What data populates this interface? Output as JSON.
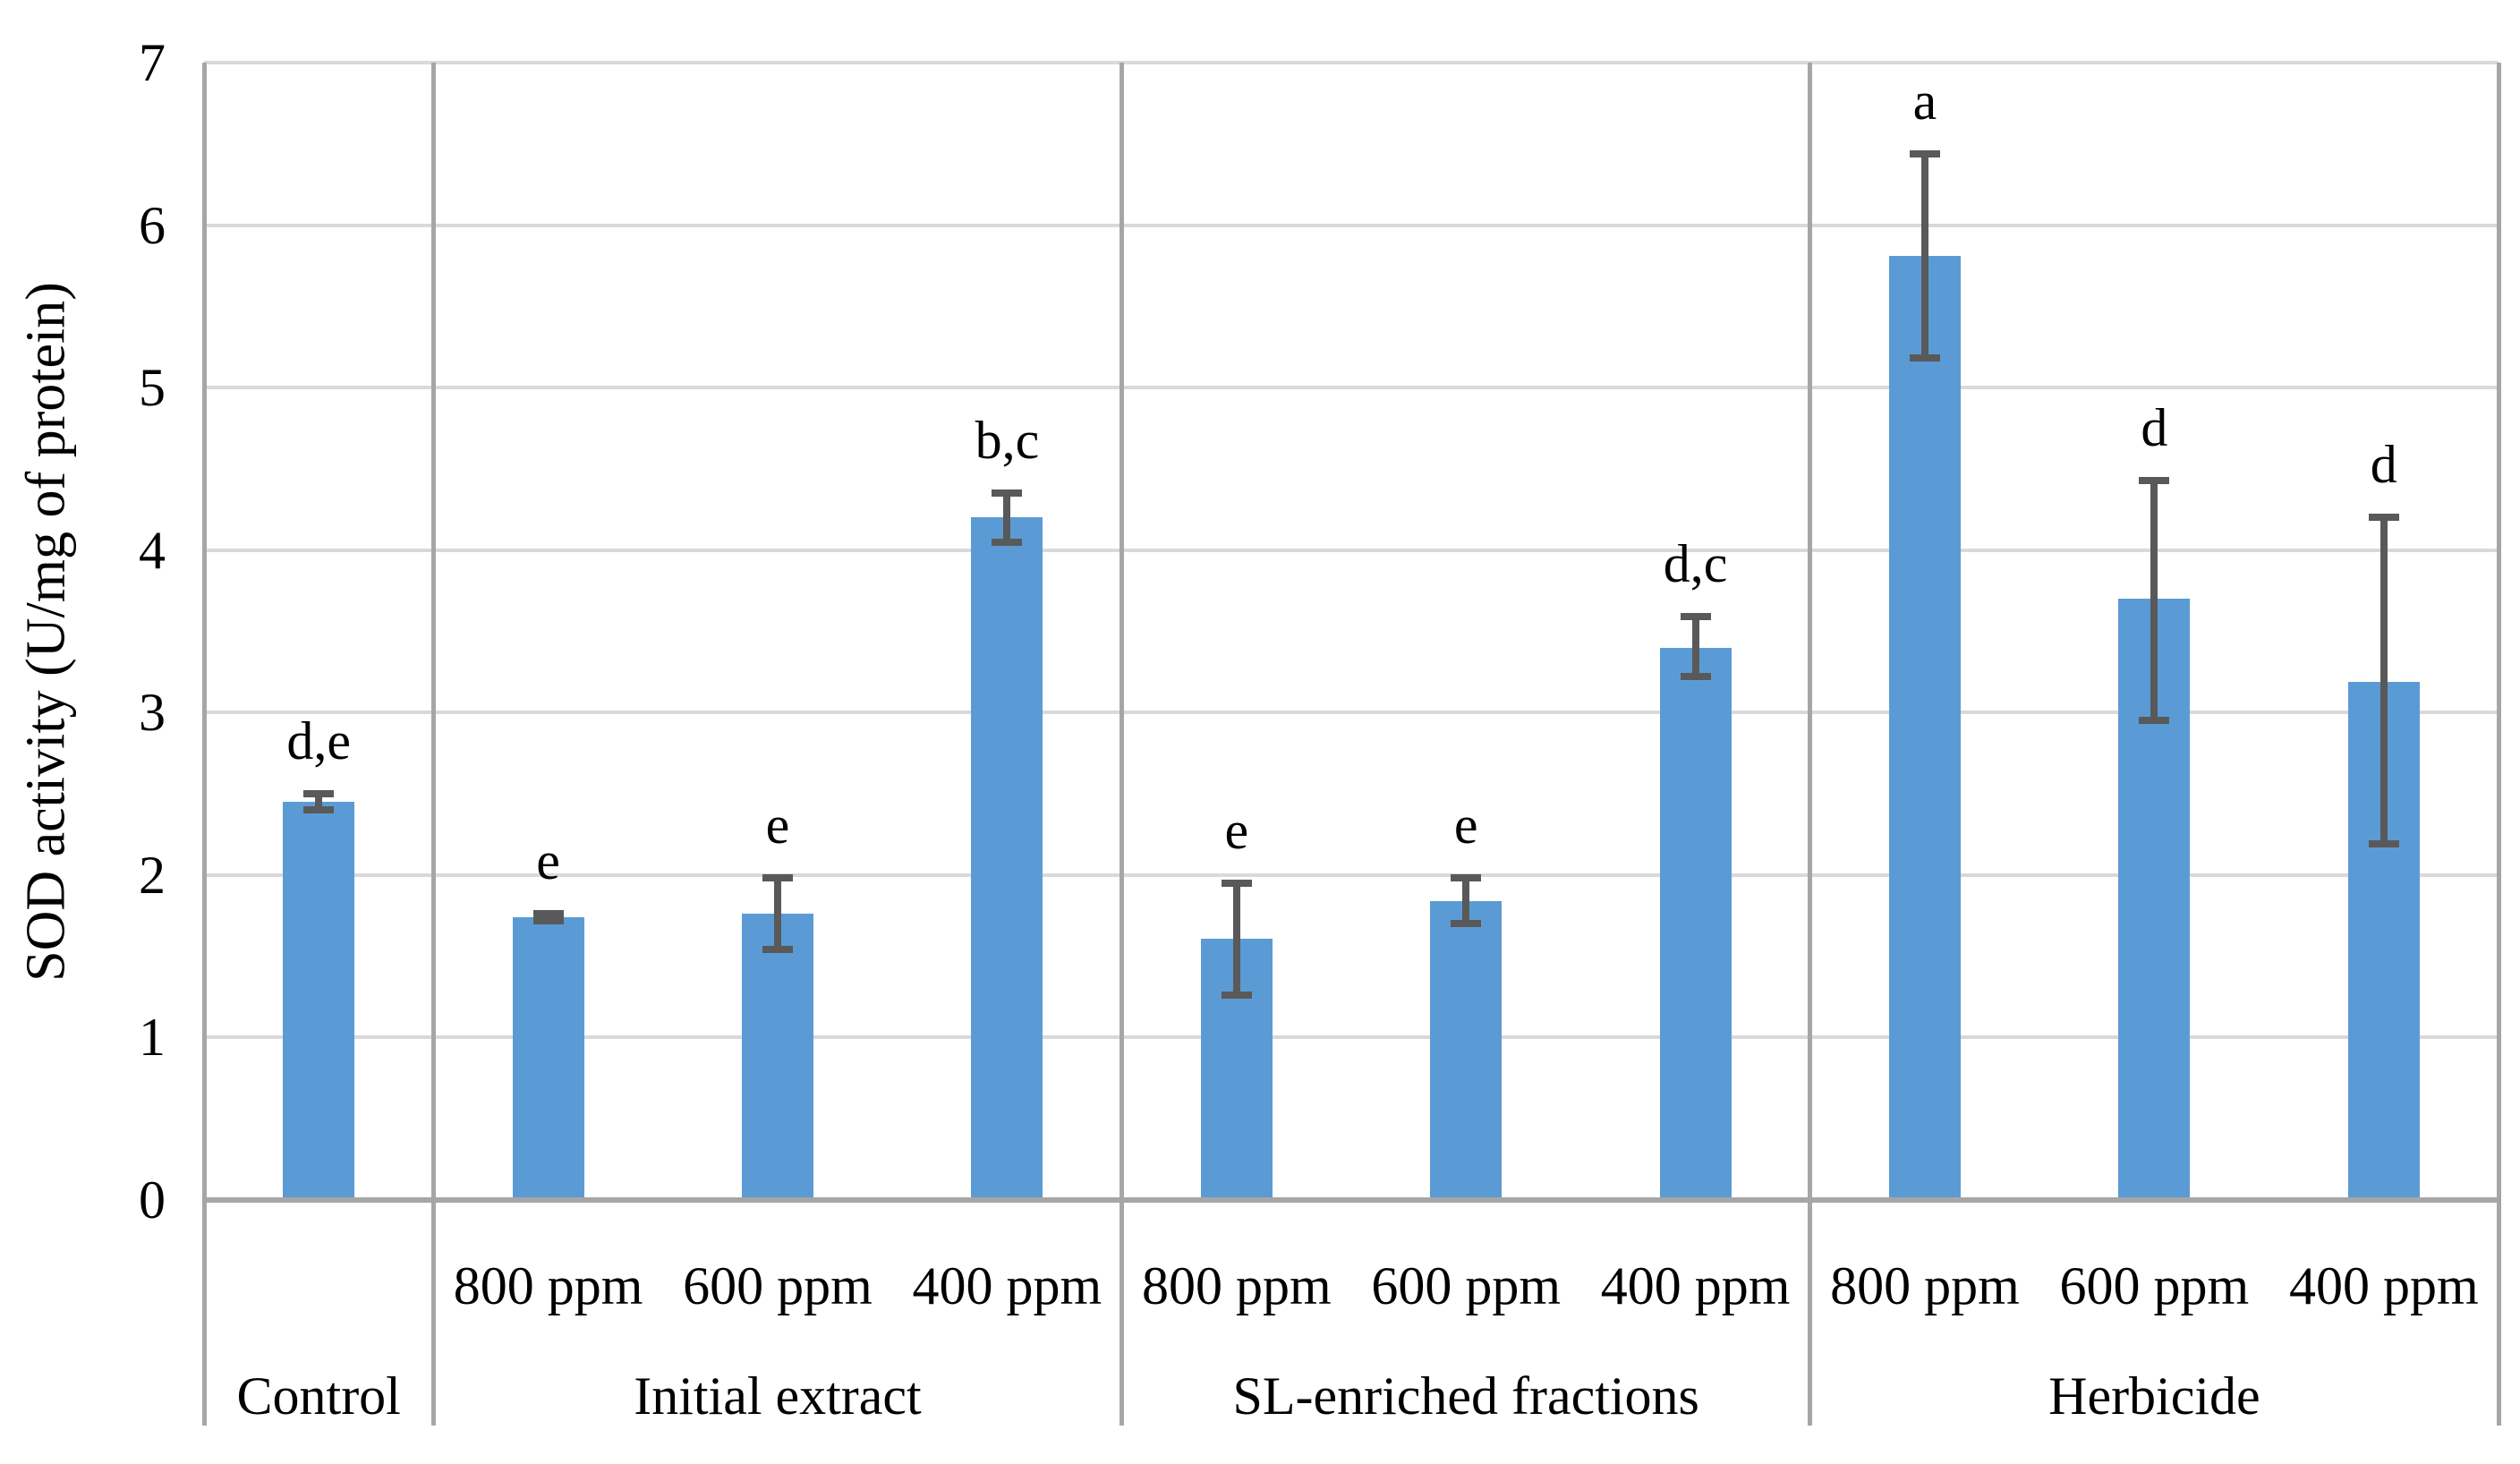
{
  "chart_data": {
    "type": "bar",
    "title": "",
    "ylabel": "SOD activity (U/mg of protein)",
    "xlabel": "",
    "ylim": [
      0,
      7
    ],
    "yticks": [
      0,
      1,
      2,
      3,
      4,
      5,
      6,
      7
    ],
    "grid": "horizontal",
    "legend": "none",
    "colors": {
      "bar": "#5B9BD5",
      "error_bar": "#595959",
      "gridline": "#D9D9D9",
      "axis_line": "#A6A6A6",
      "text": "#000000",
      "background": "#FFFFFF"
    },
    "groups": [
      {
        "label": "Control",
        "bars": [
          {
            "ppm": "",
            "value": 2.45,
            "err_low": 2.4,
            "err_high": 2.5,
            "sig": "d,e"
          }
        ]
      },
      {
        "label": "Initial extract",
        "bars": [
          {
            "ppm": "800 ppm",
            "value": 1.74,
            "err_low": 1.72,
            "err_high": 1.76,
            "sig": "e"
          },
          {
            "ppm": "600 ppm",
            "value": 1.76,
            "err_low": 1.54,
            "err_high": 1.98,
            "sig": "e"
          },
          {
            "ppm": "400 ppm",
            "value": 4.2,
            "err_low": 4.05,
            "err_high": 4.35,
            "sig": "b,c"
          }
        ]
      },
      {
        "label": "SL-enriched fractions",
        "bars": [
          {
            "ppm": "800 ppm",
            "value": 1.61,
            "err_low": 1.26,
            "err_high": 1.95,
            "sig": "e"
          },
          {
            "ppm": "600 ppm",
            "value": 1.84,
            "err_low": 1.7,
            "err_high": 1.98,
            "sig": "e"
          },
          {
            "ppm": "400 ppm",
            "value": 3.4,
            "err_low": 3.22,
            "err_high": 3.59,
            "sig": "d,c"
          }
        ]
      },
      {
        "label": "Herbicide",
        "bars": [
          {
            "ppm": "800 ppm",
            "value": 5.81,
            "err_low": 5.18,
            "err_high": 6.44,
            "sig": "a"
          },
          {
            "ppm": "600 ppm",
            "value": 3.7,
            "err_low": 2.95,
            "err_high": 4.43,
            "sig": "d"
          },
          {
            "ppm": "400 ppm",
            "value": 3.19,
            "err_low": 2.19,
            "err_high": 4.2,
            "sig": "d"
          }
        ]
      }
    ]
  }
}
